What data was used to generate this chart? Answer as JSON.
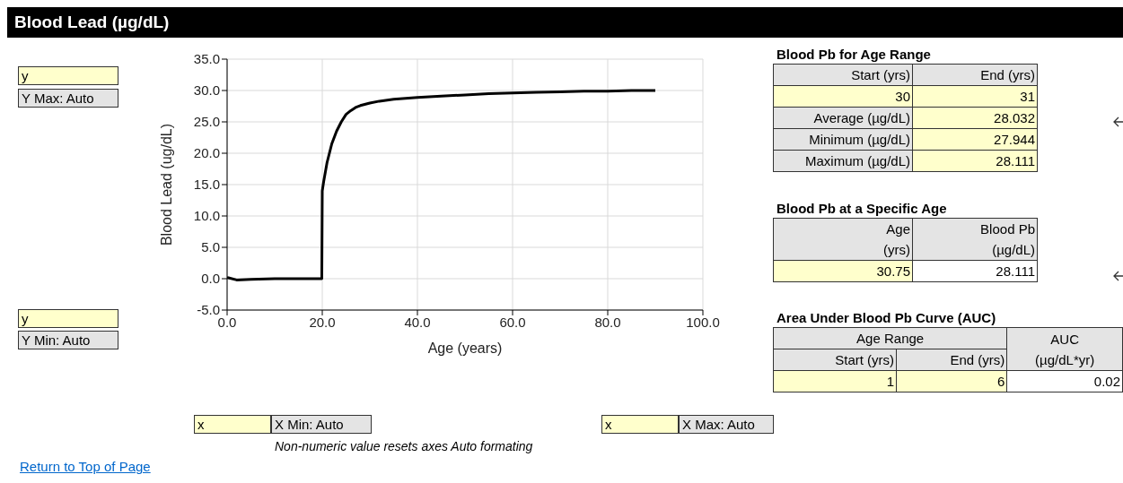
{
  "chart_data": [
    {
      "type": "line",
      "title": "Blood Lead (µg/dL)",
      "xlabel": "Age (years)",
      "ylabel": "Blood Lead (ug/dL)",
      "series": [
        {
          "color": "#000000",
          "x": [
            0,
            2,
            5,
            10,
            15,
            19.9,
            20,
            20.3,
            21,
            22,
            23,
            24,
            25,
            26,
            27,
            28,
            30,
            32,
            35,
            40,
            45,
            50,
            55,
            60,
            65,
            70,
            75,
            80,
            85,
            90
          ],
          "values": [
            0.2,
            -0.2,
            -0.1,
            0,
            0,
            0,
            14,
            15.5,
            18.5,
            21.5,
            23.5,
            25,
            26.2,
            26.8,
            27.3,
            27.6,
            28,
            28.3,
            28.6,
            28.9,
            29.1,
            29.3,
            29.5,
            29.6,
            29.7,
            29.8,
            29.9,
            29.9,
            30,
            30
          ]
        }
      ],
      "xlim": [
        0,
        100
      ],
      "xticks": [
        {
          "value": 0,
          "label": "0.0"
        },
        {
          "value": 20,
          "label": "20.0"
        },
        {
          "value": 40,
          "label": "40.0"
        },
        {
          "value": 60,
          "label": "60.0"
        },
        {
          "value": 80,
          "label": "80.0"
        },
        {
          "value": 100,
          "label": "100.0"
        }
      ],
      "ylim": [
        -5,
        35
      ],
      "yticks": [
        {
          "value": -5,
          "label": "-5.0"
        },
        {
          "value": 0,
          "label": "0.0"
        },
        {
          "value": 5,
          "label": "5.0"
        },
        {
          "value": 10,
          "label": "10.0"
        },
        {
          "value": 15,
          "label": "15.0"
        },
        {
          "value": 20,
          "label": "20.0"
        },
        {
          "value": 25,
          "label": "25.0"
        },
        {
          "value": 30,
          "label": "30.0"
        },
        {
          "value": 35,
          "label": "35.0"
        }
      ],
      "grid": true,
      "marker": "none",
      "line_style": "solid",
      "annotations": [
        "y",
        "Y Max: Auto",
        "y",
        "Y Min: Auto",
        "x",
        "X Min: Auto",
        "x",
        "X Max: Auto",
        "Non-numeric value resets axes Auto formating",
        "Return to Top of Page"
      ]
    },
    {
      "type": "other",
      "title": "Blood Pb for Age Range",
      "annotations": [
        "Start (yrs)",
        "End (yrs)",
        "30",
        "31",
        "Average (µg/dL)",
        "28.032",
        "Minimum (µg/dL)",
        "27.944",
        "Maximum (µg/dL)",
        "28.111"
      ]
    },
    {
      "type": "other",
      "title": "Blood Pb at a Specific Age",
      "annotations": [
        "Age\n(yrs)",
        "Blood Pb\n(µg/dL)",
        "30.75",
        "28.111"
      ]
    },
    {
      "type": "other",
      "title": "Area Under Blood Pb Curve (AUC)",
      "annotations": [
        "Age Range",
        "AUC\n(µg/dL*yr)",
        "Start (yrs)",
        "End (yrs)",
        "1",
        "6",
        "0.02"
      ]
    }
  ]
}
